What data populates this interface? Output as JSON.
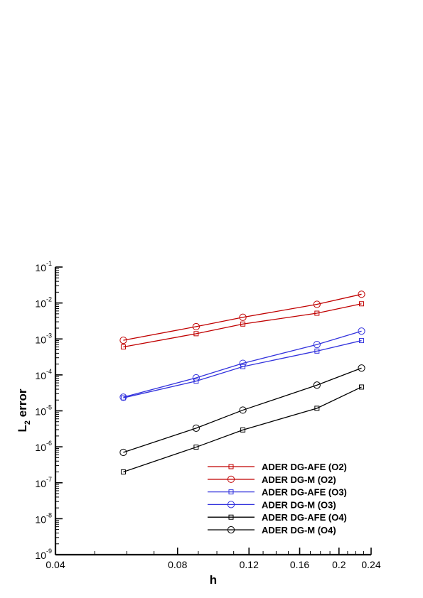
{
  "chart_data": {
    "type": "line",
    "xscale": "log",
    "yscale": "log",
    "xlabel": "h",
    "ylabel_main": "L",
    "ylabel_sub": "2",
    "ylabel_rest": " error",
    "xlim": [
      0.04,
      0.24
    ],
    "ylim": [
      1e-09,
      0.1
    ],
    "x_ticks": [
      0.04,
      0.08,
      0.12,
      0.16,
      0.2,
      0.24
    ],
    "x_tick_labels": [
      "0.04",
      "0.08",
      "0.12",
      "0.16",
      "0.2",
      "0.24"
    ],
    "y_ticks": [
      {
        "value": 1e-09,
        "base": "10",
        "exp": "-9"
      },
      {
        "value": 1e-08,
        "base": "10",
        "exp": "-8"
      },
      {
        "value": 1e-07,
        "base": "10",
        "exp": "-7"
      },
      {
        "value": 1e-06,
        "base": "10",
        "exp": "-6"
      },
      {
        "value": 1e-05,
        "base": "10",
        "exp": "-5"
      },
      {
        "value": 0.0001,
        "base": "10",
        "exp": "-4"
      },
      {
        "value": 0.001,
        "base": "10",
        "exp": "-3"
      },
      {
        "value": 0.01,
        "base": "10",
        "exp": "-2"
      },
      {
        "value": 0.1,
        "base": "10",
        "exp": "-1"
      }
    ],
    "grid": false,
    "legend_position": "bottom-right",
    "x": [
      0.0588,
      0.0889,
      0.1159,
      0.1765,
      0.2273
    ],
    "series": [
      {
        "name": "ADER DG-AFE (O2)",
        "color": "#c00000",
        "marker": "square",
        "values": [
          0.0006,
          0.0014,
          0.0026,
          0.0052,
          0.0095
        ]
      },
      {
        "name": "ADER DG-M (O2)",
        "color": "#c00000",
        "marker": "circle",
        "values": [
          0.00092,
          0.0022,
          0.004,
          0.0092,
          0.0175
        ]
      },
      {
        "name": "ADER DG-AFE (O3)",
        "color": "#3333dd",
        "marker": "square",
        "values": [
          2.3e-05,
          6.7e-05,
          0.00017,
          0.00046,
          0.0009
        ]
      },
      {
        "name": "ADER DG-M (O3)",
        "color": "#3333dd",
        "marker": "circle",
        "values": [
          2.4e-05,
          8.3e-05,
          0.00021,
          0.0007,
          0.00165
        ]
      },
      {
        "name": "ADER DG-AFE (O4)",
        "color": "#000000",
        "marker": "square",
        "values": [
          2e-07,
          9.8e-07,
          2.95e-06,
          1.18e-05,
          4.6e-05
        ]
      },
      {
        "name": "ADER DG-M (O4)",
        "color": "#000000",
        "marker": "circle",
        "values": [
          7e-07,
          3.3e-06,
          1.05e-05,
          5.2e-05,
          0.000155
        ]
      }
    ]
  }
}
